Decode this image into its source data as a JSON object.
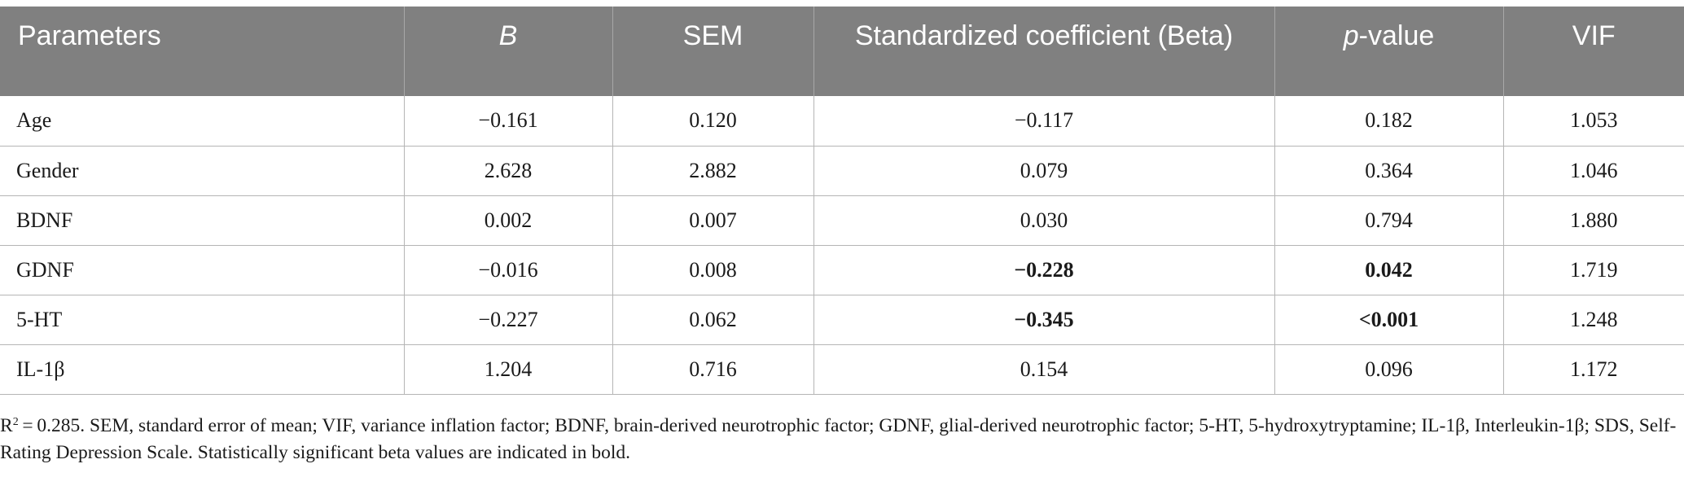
{
  "table": {
    "headers": [
      {
        "text": "Parameters",
        "italic": "",
        "rest": ""
      },
      {
        "text": "",
        "italic": "B",
        "rest": ""
      },
      {
        "text": "SEM",
        "italic": "",
        "rest": ""
      },
      {
        "text": "Standardized coefficient (Beta)",
        "italic": "",
        "rest": ""
      },
      {
        "text": "",
        "italic": "p",
        "rest": "-value"
      },
      {
        "text": "VIF",
        "italic": "",
        "rest": ""
      }
    ],
    "rows": [
      {
        "param": "Age",
        "b": "−0.161",
        "sem": "0.120",
        "beta": "−0.117",
        "p": "0.182",
        "vif": "1.053"
      },
      {
        "param": "Gender",
        "b": "2.628",
        "sem": "2.882",
        "beta": "0.079",
        "p": "0.364",
        "vif": "1.046"
      },
      {
        "param": "BDNF",
        "b": "0.002",
        "sem": "0.007",
        "beta": "0.030",
        "p": "0.794",
        "vif": "1.880"
      },
      {
        "param": "GDNF",
        "b": "−0.016",
        "sem": "0.008",
        "beta": "−0.228",
        "p": "0.042",
        "vif": "1.719"
      },
      {
        "param": "5-HT",
        "b": "−0.227",
        "sem": "0.062",
        "beta": "−0.345",
        "p": "<0.001",
        "vif": "1.248"
      },
      {
        "param": "IL-1β",
        "b": "1.204",
        "sem": "0.716",
        "beta": "0.154",
        "p": "0.096",
        "vif": "1.172"
      }
    ]
  },
  "footnote": {
    "r_letter": "R",
    "r_sup": "2",
    "text": " = 0.285. SEM, standard error of mean; VIF, variance inflation factor; BDNF, brain-derived neurotrophic factor; GDNF, glial-derived neurotrophic factor; 5-HT, 5-hydroxytryptamine; IL-1β, Interleukin-1β; SDS, Self-Rating Depression Scale. Statistically significant beta values are indicated in bold."
  }
}
